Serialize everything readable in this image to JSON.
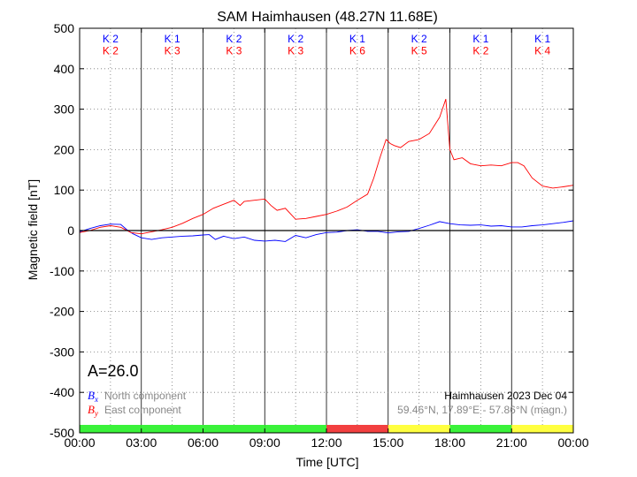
{
  "chart_data": {
    "type": "line",
    "title": "SAM Haimhausen (48.27N 11.68E)",
    "xlabel": "Time [UTC]",
    "ylabel": "Magnetic field [nT]",
    "xlim": [
      0,
      24
    ],
    "ylim": [
      -500,
      500
    ],
    "x_ticks": [
      "00:00",
      "03:00",
      "06:00",
      "09:00",
      "12:00",
      "15:00",
      "18:00",
      "21:00",
      "00:00"
    ],
    "y_ticks": [
      -500,
      -400,
      -300,
      -200,
      -100,
      0,
      100,
      200,
      300,
      400,
      500
    ],
    "grid": true,
    "series": [
      {
        "name": "B_x North component",
        "color": "#0000ff",
        "x": [
          0,
          0.5,
          1,
          1.5,
          2,
          2.3,
          2.6,
          3,
          3.5,
          4,
          4.5,
          5,
          5.5,
          6,
          6.3,
          6.6,
          7,
          7.5,
          8,
          8.5,
          9,
          9.5,
          10,
          10.5,
          11,
          11.5,
          12,
          12.5,
          13,
          13.5,
          14,
          14.5,
          15,
          15.5,
          16,
          16.5,
          17,
          17.5,
          18,
          18.5,
          19,
          19.5,
          20,
          20.5,
          21,
          21.5,
          22,
          22.5,
          23,
          23.5,
          24
        ],
        "y": [
          -3,
          5,
          12,
          16,
          15,
          2,
          -8,
          -18,
          -22,
          -18,
          -16,
          -14,
          -13,
          -11,
          -10,
          -22,
          -14,
          -20,
          -16,
          -24,
          -26,
          -24,
          -27,
          -12,
          -18,
          -10,
          -5,
          -4,
          0,
          2,
          -2,
          -2,
          -6,
          -3,
          -2,
          5,
          13,
          22,
          17,
          14,
          13,
          14,
          11,
          12,
          9,
          9,
          12,
          14,
          17,
          20,
          24
        ]
      },
      {
        "name": "B_y East component",
        "color": "#ff0000",
        "x": [
          0,
          0.5,
          1,
          1.5,
          2,
          2.5,
          3,
          3.5,
          4,
          4.5,
          5,
          5.5,
          6,
          6.5,
          7,
          7.5,
          7.8,
          8,
          8.5,
          9,
          9.3,
          9.6,
          10,
          10.5,
          11,
          11.5,
          12,
          12.5,
          13,
          13.5,
          14,
          14.3,
          14.6,
          14.9,
          15.1,
          15.3,
          15.6,
          16,
          16.5,
          17,
          17.5,
          17.8,
          18,
          18.2,
          18.6,
          19,
          19.5,
          20,
          20.5,
          21,
          21.3,
          21.6,
          22,
          22.5,
          23,
          23.5,
          24
        ],
        "y": [
          -5,
          0,
          8,
          12,
          8,
          -5,
          -8,
          -3,
          2,
          8,
          18,
          30,
          40,
          55,
          65,
          75,
          62,
          72,
          75,
          78,
          62,
          50,
          55,
          28,
          30,
          35,
          40,
          48,
          58,
          75,
          90,
          130,
          180,
          225,
          215,
          210,
          205,
          220,
          225,
          240,
          280,
          325,
          200,
          175,
          180,
          165,
          160,
          162,
          160,
          168,
          168,
          160,
          130,
          110,
          105,
          108,
          112
        ]
      }
    ],
    "k_index_bx": [
      "K 2",
      "K 1",
      "K 2",
      "K 2",
      "K 1",
      "K 2",
      "K 1",
      "K 1"
    ],
    "k_index_by": [
      "K 2",
      "K 3",
      "K 3",
      "K 3",
      "K 6",
      "K 5",
      "K 2",
      "K 4"
    ],
    "activity_bar": [
      "#3af23a",
      "#3af23a",
      "#3af23a",
      "#3af23a",
      "#f24040",
      "#ffff40",
      "#3af23a",
      "#ffff40"
    ],
    "a_index": "A=26.0",
    "legend": {
      "bx_symbol": "B",
      "bx_sub": "x",
      "bx_text": "North component",
      "by_symbol": "B",
      "by_sub": "y",
      "by_text": "East component"
    },
    "station_date": "Haimhausen 2023 Dec 04",
    "coords": "59.46°N, 17.89°E - 57.86°N (magn.)"
  }
}
